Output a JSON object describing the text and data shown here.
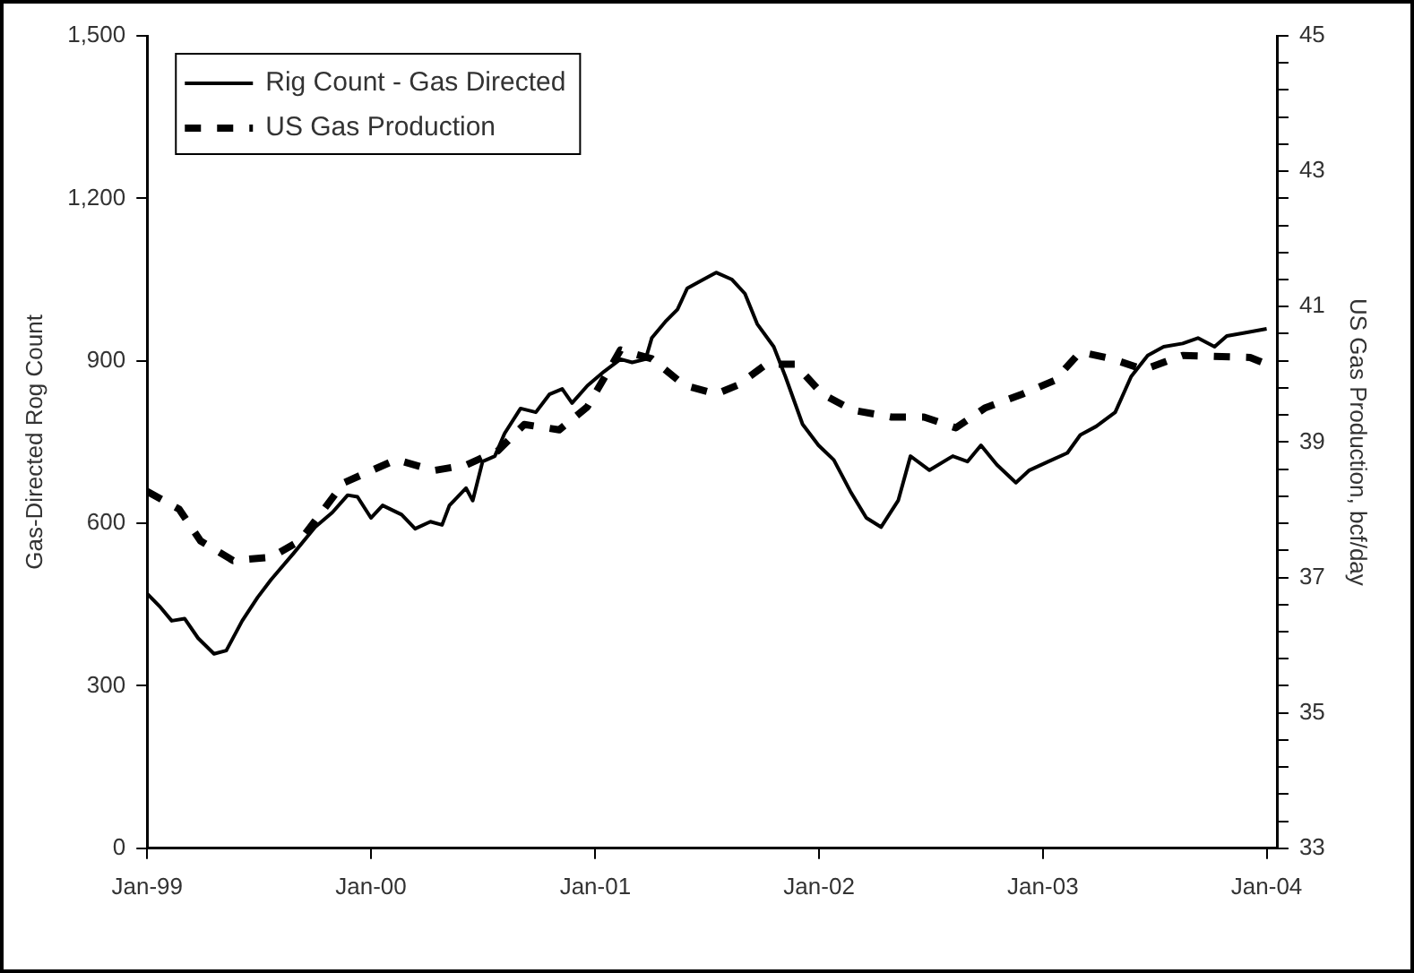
{
  "chart_data": {
    "type": "line",
    "ylabel": "Gas-Directed Rog Count",
    "y2label": "US Gas Production, bcf/day",
    "xlim": [
      "1999-01-01",
      "2004-01-19"
    ],
    "xticks": [
      {
        "value": "1999-01-01",
        "label": "Jan-99"
      },
      {
        "value": "2000-01-01",
        "label": "Jan-00"
      },
      {
        "value": "2001-01-01",
        "label": "Jan-01"
      },
      {
        "value": "2002-01-01",
        "label": "Jan-02"
      },
      {
        "value": "2003-01-01",
        "label": "Jan-03"
      },
      {
        "value": "2004-01-01",
        "label": "Jan-04"
      }
    ],
    "ylim": [
      0,
      1500
    ],
    "yticks": [
      0,
      300,
      600,
      900,
      {
        "value": 1200,
        "label": "1,200"
      },
      {
        "value": 1500,
        "label": "1,500"
      }
    ],
    "y2lim": [
      33,
      45
    ],
    "y2ticks": [
      33,
      {
        "value": 33.4,
        "label": null
      },
      {
        "value": 33.8,
        "label": null
      },
      {
        "value": 34.2,
        "label": null
      },
      {
        "value": 34.6,
        "label": null
      },
      35,
      {
        "value": 35.4,
        "label": null
      },
      {
        "value": 35.8,
        "label": null
      },
      {
        "value": 36.2,
        "label": null
      },
      {
        "value": 36.6,
        "label": null
      },
      37,
      {
        "value": 37.4,
        "label": null
      },
      {
        "value": 37.8,
        "label": null
      },
      {
        "value": 38.2,
        "label": null
      },
      {
        "value": 38.6,
        "label": null
      },
      39,
      {
        "value": 39.4,
        "label": null
      },
      {
        "value": 39.8,
        "label": null
      },
      {
        "value": 40.2,
        "label": null
      },
      {
        "value": 40.6,
        "label": null
      },
      41,
      {
        "value": 41.4,
        "label": null
      },
      {
        "value": 41.8,
        "label": null
      },
      {
        "value": 42.2,
        "label": null
      },
      {
        "value": 42.6,
        "label": null
      },
      43,
      {
        "value": 43.4,
        "label": null
      },
      {
        "value": 43.8,
        "label": null
      },
      {
        "value": 44.2,
        "label": null
      },
      {
        "value": 44.6,
        "label": null
      },
      45
    ],
    "legend": "top left",
    "marker": "none",
    "series": [
      {
        "name": "Rig Count - Gas Directed",
        "color": "#000000",
        "line_style": "solid",
        "x": [
          "1999-01-01",
          "1999-01-21",
          "1999-02-10",
          "1999-03-03",
          "1999-03-25",
          "1999-04-20",
          "1999-05-10",
          "1999-06-05",
          "1999-06-30",
          "1999-07-22",
          "1999-08-28",
          "1999-10-02",
          "1999-10-30",
          "1999-11-24",
          "1999-12-10",
          "2000-01-01",
          "2000-01-20",
          "2000-02-20",
          "2000-03-13",
          "2000-04-07",
          "2000-04-26",
          "2000-05-08",
          "2000-06-04",
          "2000-06-15",
          "2000-07-01",
          "2000-07-21",
          "2000-08-06",
          "2000-09-01",
          "2000-09-26",
          "2000-10-18",
          "2000-11-08",
          "2000-11-24",
          "2000-12-19",
          "2001-01-15",
          "2001-02-11",
          "2001-03-02",
          "2001-03-24",
          "2001-04-03",
          "2001-04-25",
          "2001-05-15",
          "2001-05-31",
          "2001-06-26",
          "2001-07-17",
          "2001-08-12",
          "2001-09-02",
          "2001-09-22",
          "2001-10-19",
          "2001-11-07",
          "2001-12-05",
          "2001-12-31",
          "2002-01-25",
          "2002-02-21",
          "2002-03-19",
          "2002-04-12",
          "2002-05-10",
          "2002-05-30",
          "2002-06-30",
          "2002-08-07",
          "2002-08-31",
          "2002-09-22",
          "2002-10-18",
          "2002-11-18",
          "2002-12-10",
          "2003-01-10",
          "2003-02-10",
          "2003-03-03",
          "2003-03-29",
          "2003-04-29",
          "2003-05-25",
          "2003-06-21",
          "2003-07-17",
          "2003-08-17",
          "2003-09-11",
          "2003-10-08",
          "2003-10-28",
          "2003-11-28",
          "2004-01-01"
        ],
        "values": [
          470,
          447,
          420,
          424,
          388,
          359,
          365,
          420,
          463,
          496,
          545,
          593,
          620,
          652,
          649,
          610,
          633,
          616,
          590,
          603,
          597,
          633,
          665,
          642,
          714,
          724,
          766,
          812,
          805,
          838,
          848,
          822,
          854,
          880,
          903,
          897,
          903,
          942,
          972,
          995,
          1034,
          1050,
          1063,
          1050,
          1024,
          968,
          926,
          871,
          783,
          744,
          717,
          659,
          610,
          593,
          642,
          724,
          698,
          724,
          714,
          744,
          708,
          675,
          698,
          714,
          730,
          763,
          779,
          805,
          871,
          910,
          926,
          932,
          942,
          926,
          946,
          952,
          959
        ]
      },
      {
        "name": "US Gas Production",
        "color": "#000000",
        "line_style": "dashed",
        "axis": "y2",
        "x": [
          "1999-01-01",
          "1999-02-22",
          "1999-03-29",
          "1999-05-21",
          "1999-07-22",
          "1999-09-07",
          "1999-11-18",
          "2000-02-11",
          "2000-04-13",
          "2000-06-04",
          "2000-07-26",
          "2000-09-07",
          "2000-11-03",
          "2000-12-19",
          "2001-02-11",
          "2001-04-03",
          "2001-05-26",
          "2001-07-17",
          "2001-08-21",
          "2001-10-07",
          "2001-11-23",
          "2002-01-06",
          "2002-02-25",
          "2002-04-29",
          "2002-06-21",
          "2002-08-12",
          "2002-09-28",
          "2002-11-29",
          "2003-01-20",
          "2003-03-03",
          "2003-04-23",
          "2003-06-15",
          "2003-08-17",
          "2003-12-05",
          "2004-01-01"
        ],
        "values": [
          38.27,
          38.01,
          37.54,
          37.25,
          37.3,
          37.54,
          38.4,
          38.74,
          38.58,
          38.66,
          38.87,
          39.26,
          39.18,
          39.52,
          40.36,
          40.23,
          39.84,
          39.71,
          39.84,
          40.15,
          40.15,
          39.71,
          39.47,
          39.37,
          39.37,
          39.21,
          39.5,
          39.71,
          39.91,
          40.33,
          40.23,
          40.07,
          40.28,
          40.25,
          40.15
        ]
      }
    ]
  }
}
